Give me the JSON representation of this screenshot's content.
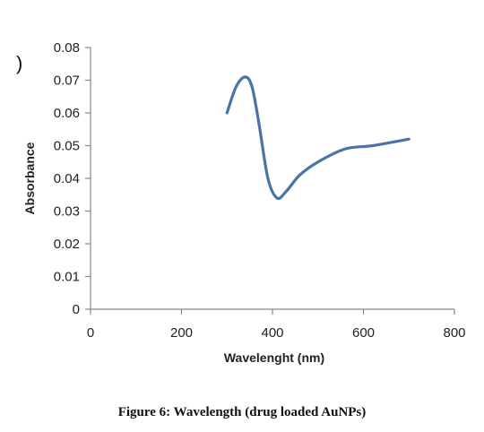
{
  "stray_mark": ")",
  "caption": "Figure 6: Wavelength (drug loaded AuNPs)",
  "chart_data": {
    "type": "line",
    "xlabel": "Wavelenght (nm)",
    "ylabel": "Absorbance",
    "xlim": [
      0,
      800
    ],
    "ylim": [
      0,
      0.08
    ],
    "x_ticks": [
      0,
      200,
      400,
      600,
      800
    ],
    "x_tick_labels": [
      "0",
      "200",
      "400",
      "600",
      "800"
    ],
    "y_ticks": [
      0,
      0.01,
      0.02,
      0.03,
      0.04,
      0.05,
      0.06,
      0.07,
      0.08
    ],
    "y_tick_labels": [
      "0",
      "0.01",
      "0.02",
      "0.03",
      "0.04",
      "0.05",
      "0.06",
      "0.07",
      "0.08"
    ],
    "grid": false,
    "series": [
      {
        "color": "#4a74a8",
        "x": [
          300,
          320,
          340,
          355,
          370,
          390,
          410,
          430,
          460,
          500,
          560,
          620,
          700
        ],
        "y": [
          0.06,
          0.068,
          0.071,
          0.068,
          0.057,
          0.04,
          0.034,
          0.036,
          0.041,
          0.045,
          0.049,
          0.05,
          0.052
        ]
      }
    ]
  }
}
